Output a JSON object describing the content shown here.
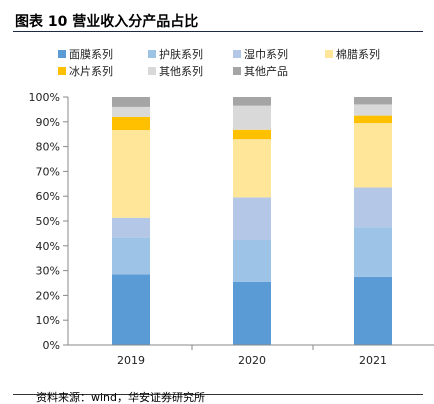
{
  "figure": {
    "title": "图表 10  营业收入分产品占比",
    "source": "资料来源：wind，华安证券研究所"
  },
  "chart_data": {
    "type": "bar",
    "stacked": true,
    "categories": [
      "2019",
      "2020",
      "2021"
    ],
    "ylim": [
      0,
      100
    ],
    "yticks": [
      "0%",
      "10%",
      "20%",
      "30%",
      "40%",
      "50%",
      "60%",
      "70%",
      "80%",
      "90%",
      "100%"
    ],
    "grid": false,
    "legend_position": "top",
    "series": [
      {
        "name": "面膜系列",
        "color": "#5b9bd5",
        "values": [
          28.5,
          25.5,
          27.5
        ]
      },
      {
        "name": "护肤系列",
        "color": "#9dc3e6",
        "values": [
          14.8,
          17.0,
          20.0
        ]
      },
      {
        "name": "湿巾系列",
        "color": "#b4c7e7",
        "values": [
          8.0,
          17.0,
          16.0
        ]
      },
      {
        "name": "棉腊系列",
        "color": "#ffe699",
        "values": [
          35.4,
          23.5,
          26.0
        ]
      },
      {
        "name": "冰片系列",
        "color": "#ffc000",
        "values": [
          5.3,
          3.8,
          3.0
        ]
      },
      {
        "name": "其他系列",
        "color": "#d9d9d9",
        "values": [
          4.0,
          9.7,
          4.5
        ]
      },
      {
        "name": "其他产品",
        "color": "#a5a5a5",
        "values": [
          4.0,
          3.5,
          3.0
        ]
      }
    ]
  }
}
